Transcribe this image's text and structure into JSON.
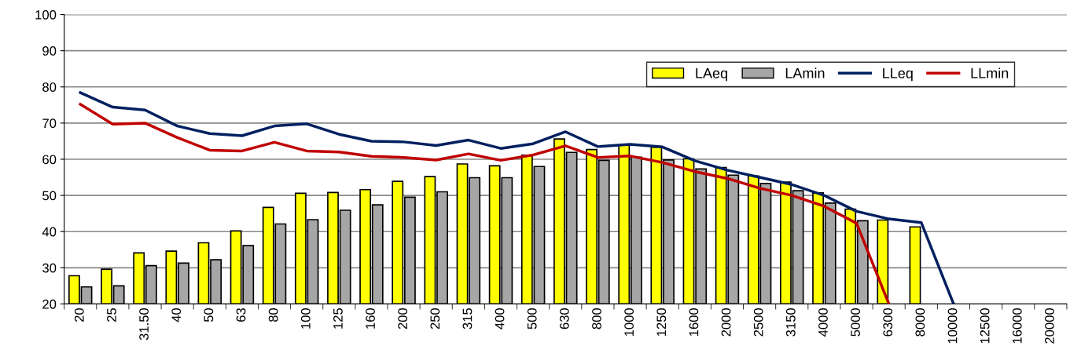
{
  "chart_data": {
    "type": "bar",
    "categories": [
      "20",
      "25",
      "31.50",
      "40",
      "50",
      "63",
      "80",
      "100",
      "125",
      "160",
      "200",
      "250",
      "315",
      "400",
      "500",
      "630",
      "800",
      "1000",
      "1250",
      "1600",
      "2000",
      "2500",
      "3150",
      "4000",
      "5000",
      "6300",
      "8000",
      "10000",
      "12500",
      "16000",
      "20000"
    ],
    "series": [
      {
        "name": "LAeq",
        "color": "#ffff00",
        "values": [
          27.8,
          29.6,
          34.1,
          34.6,
          36.9,
          40.2,
          46.7,
          50.6,
          50.8,
          51.6,
          53.9,
          55.2,
          58.7,
          58.2,
          61.1,
          65.6,
          62.7,
          64.0,
          63.3,
          60.1,
          57.7,
          55.4,
          53.7,
          50.7,
          46.2,
          43.2,
          41.3,
          null,
          null,
          null,
          null
        ]
      },
      {
        "name": "LAmin",
        "color": "#a6a6a6",
        "values": [
          24.7,
          25.0,
          30.6,
          31.3,
          32.2,
          36.1,
          42.1,
          43.3,
          45.9,
          47.4,
          49.5,
          51.0,
          54.9,
          54.9,
          58.0,
          61.9,
          59.7,
          60.6,
          59.8,
          57.3,
          55.6,
          53.3,
          51.3,
          47.9,
          43.0,
          null,
          null,
          null,
          null,
          null,
          null
        ]
      },
      {
        "name": "LLeq",
        "type": "line",
        "color": "#002060",
        "values": [
          78.4,
          74.4,
          73.6,
          69.2,
          67.1,
          66.5,
          69.2,
          69.8,
          66.9,
          65.0,
          64.8,
          63.8,
          65.3,
          63.0,
          64.3,
          67.6,
          63.5,
          64.1,
          63.4,
          59.6,
          57.0,
          55.0,
          53.0,
          50.0,
          45.6,
          43.5,
          42.5,
          20,
          null,
          null,
          null
        ]
      },
      {
        "name": "LLmin",
        "type": "line",
        "color": "#c00000",
        "values": [
          75.2,
          69.7,
          70.0,
          66.0,
          62.5,
          62.3,
          64.7,
          62.3,
          62.0,
          60.8,
          60.5,
          59.8,
          61.5,
          59.7,
          61.2,
          63.7,
          60.5,
          60.9,
          59.1,
          56.6,
          54.7,
          52.0,
          50.0,
          47.0,
          42.3,
          20,
          null,
          null,
          null,
          null,
          null
        ]
      }
    ],
    "ylim": [
      20,
      100
    ],
    "yticks": [
      20,
      30,
      40,
      50,
      60,
      70,
      80,
      90,
      100
    ],
    "grid": "y",
    "legend": "top right"
  }
}
